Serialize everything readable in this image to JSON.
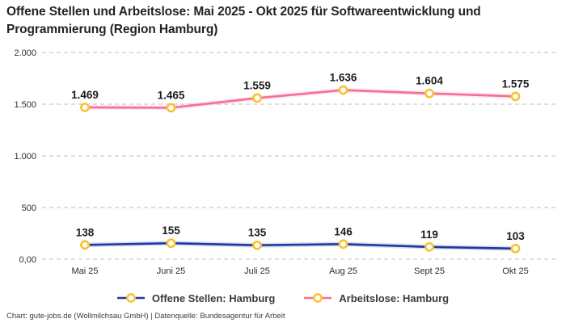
{
  "title": "Offene Stellen und Arbeitslose: Mai 2025 - Okt 2025 für Softwareentwicklung und Programmierung (Region Hamburg)",
  "footer": "Chart: gute-jobs.de (Wollmilchsau GmbH) | Datenquelle: Bundesagentur für Arbeit",
  "colors": {
    "blue": "#20379f",
    "pink": "#f76e95",
    "marker": "#f9c234",
    "grid": "#cbcbcb"
  },
  "chart_data": {
    "type": "line",
    "title": "Offene Stellen und Arbeitslose: Mai 2025 - Okt 2025 für Softwareentwicklung und Programmierung (Region Hamburg)",
    "categories": [
      "Mai 25",
      "Juni 25",
      "Juli 25",
      "Aug 25",
      "Sept 25",
      "Okt 25"
    ],
    "series": [
      {
        "name": "Offene Stellen: Hamburg",
        "color_key": "blue",
        "values": [
          138,
          155,
          135,
          146,
          119,
          103
        ],
        "labels": [
          "138",
          "155",
          "135",
          "146",
          "119",
          "103"
        ]
      },
      {
        "name": "Arbeitslose: Hamburg",
        "color_key": "pink",
        "values": [
          1469,
          1465,
          1559,
          1636,
          1604,
          1575
        ],
        "labels": [
          "1.469",
          "1.465",
          "1.559",
          "1.636",
          "1.604",
          "1.575"
        ]
      }
    ],
    "y_ticks": [
      {
        "value": 0,
        "label": "0,00"
      },
      {
        "value": 500,
        "label": "500"
      },
      {
        "value": 1000,
        "label": "1.000"
      },
      {
        "value": 1500,
        "label": "1.500"
      },
      {
        "value": 2000,
        "label": "2.000"
      }
    ],
    "ylim": [
      0,
      2000
    ],
    "xlabel": "",
    "ylabel": "",
    "grid": "horizontal-dashed",
    "legend_position": "bottom"
  }
}
